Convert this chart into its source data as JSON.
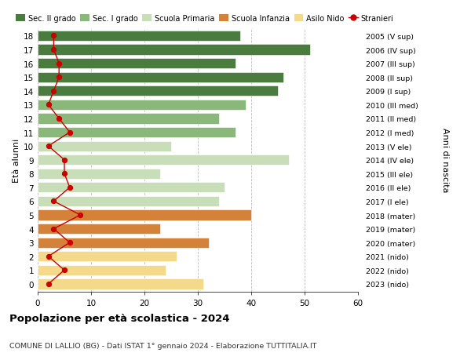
{
  "ages": [
    18,
    17,
    16,
    15,
    14,
    13,
    12,
    11,
    10,
    9,
    8,
    7,
    6,
    5,
    4,
    3,
    2,
    1,
    0
  ],
  "bar_values": [
    38,
    51,
    37,
    46,
    45,
    39,
    34,
    37,
    25,
    47,
    23,
    35,
    34,
    40,
    23,
    32,
    26,
    24,
    31
  ],
  "bar_colors": [
    "#4a7c3f",
    "#4a7c3f",
    "#4a7c3f",
    "#4a7c3f",
    "#4a7c3f",
    "#8ab87a",
    "#8ab87a",
    "#8ab87a",
    "#c8deb8",
    "#c8deb8",
    "#c8deb8",
    "#c8deb8",
    "#c8deb8",
    "#d4813a",
    "#d4813a",
    "#d4813a",
    "#f5d98b",
    "#f5d98b",
    "#f5d98b"
  ],
  "right_labels": [
    "2005 (V sup)",
    "2006 (IV sup)",
    "2007 (III sup)",
    "2008 (II sup)",
    "2009 (I sup)",
    "2010 (III med)",
    "2011 (II med)",
    "2012 (I med)",
    "2013 (V ele)",
    "2014 (IV ele)",
    "2015 (III ele)",
    "2016 (II ele)",
    "2017 (I ele)",
    "2018 (mater)",
    "2019 (mater)",
    "2020 (mater)",
    "2021 (nido)",
    "2022 (nido)",
    "2023 (nido)"
  ],
  "stranieri_values": [
    3,
    3,
    4,
    4,
    3,
    2,
    4,
    6,
    2,
    5,
    5,
    6,
    3,
    8,
    3,
    6,
    2,
    5,
    2
  ],
  "legend_labels": [
    "Sec. II grado",
    "Sec. I grado",
    "Scuola Primaria",
    "Scuola Infanzia",
    "Asilo Nido",
    "Stranieri"
  ],
  "legend_colors": [
    "#4a7c3f",
    "#8ab87a",
    "#c8deb8",
    "#d4813a",
    "#f5d98b",
    "#cc0000"
  ],
  "title": "Popolazione per età scolastica - 2024",
  "subtitle": "COMUNE DI LALLIO (BG) - Dati ISTAT 1° gennaio 2024 - Elaborazione TUTTITALIA.IT",
  "ylabel_left": "Età alunni",
  "ylabel_right": "Anni di nascita",
  "xlim": [
    0,
    60
  ],
  "background_color": "#ffffff",
  "bar_height": 0.75,
  "stranieri_color": "#cc0000",
  "grid_color": "#bbbbbb"
}
